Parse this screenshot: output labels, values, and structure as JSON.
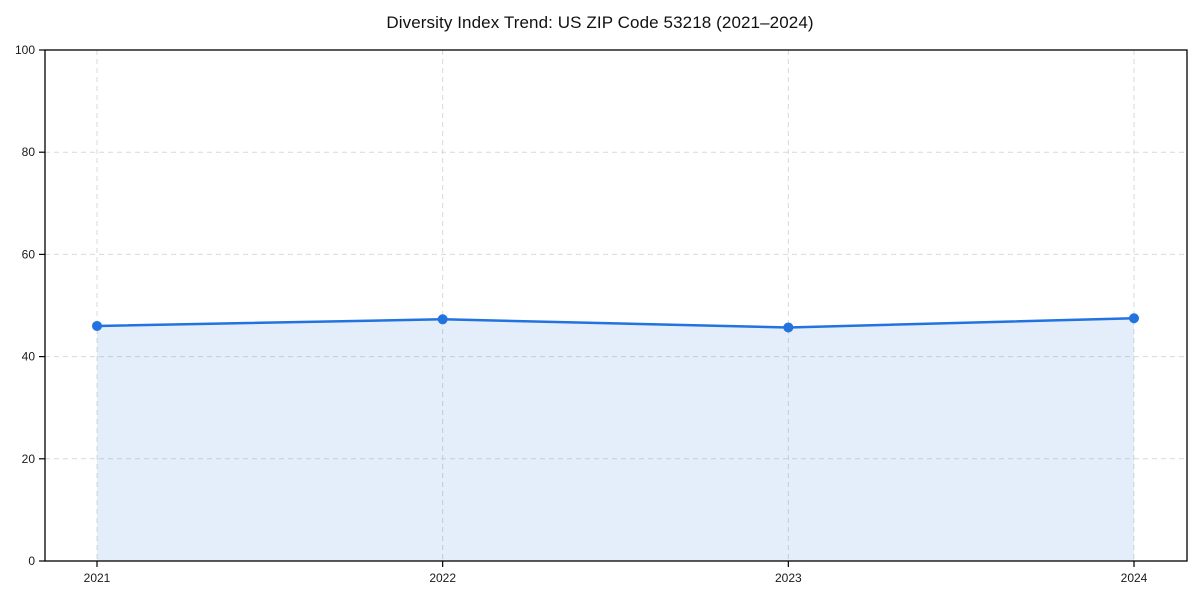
{
  "chart_data": {
    "type": "area",
    "title": "Diversity Index Trend: US ZIP Code 53218 (2021–2024)",
    "series_name": "Diversity Index",
    "x": [
      "2021",
      "2022",
      "2023",
      "2024"
    ],
    "values": [
      46.0,
      47.3,
      45.7,
      47.5
    ],
    "xlabel": "",
    "ylabel": "",
    "ylim": [
      0,
      100
    ],
    "yticks": [
      0,
      20,
      40,
      60,
      80,
      100
    ],
    "grid": true,
    "legend": "none",
    "colors": {
      "line": "#2273e0",
      "marker": "#2273e0",
      "fill": "#e4eefb",
      "grid": "#d9d9d9",
      "frame": "#000000",
      "tick_text": "#1a1a1a"
    }
  }
}
